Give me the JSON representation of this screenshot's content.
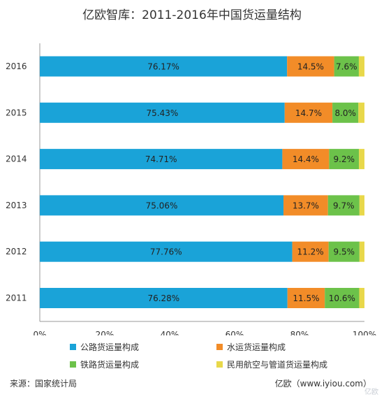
{
  "chart_data": {
    "type": "bar",
    "orientation": "horizontal",
    "stacked": true,
    "title": "亿欧智库：2011-2016年中国货运量结构",
    "categories": [
      "2016",
      "2015",
      "2014",
      "2013",
      "2012",
      "2011"
    ],
    "series": [
      {
        "name": "公路货运量构成",
        "color": "#1aa3d8",
        "values": [
          76.17,
          75.43,
          74.71,
          75.06,
          77.76,
          76.28
        ],
        "labels": [
          "76.17%",
          "75.43%",
          "74.71%",
          "75.06%",
          "77.76%",
          "76.28%"
        ]
      },
      {
        "name": "水运货运量构成",
        "color": "#f28c28",
        "values": [
          14.5,
          14.7,
          14.4,
          13.7,
          11.2,
          11.5
        ],
        "labels": [
          "14.5%",
          "14.7%",
          "14.4%",
          "13.7%",
          "11.2%",
          "11.5%"
        ]
      },
      {
        "name": "铁路货运量构成",
        "color": "#6cc24a",
        "values": [
          7.6,
          8.0,
          9.2,
          9.7,
          9.5,
          10.6
        ],
        "labels": [
          "7.6%",
          "8.0%",
          "9.2%",
          "9.7%",
          "9.5%",
          "10.6%"
        ]
      },
      {
        "name": "民用航空与管道货运量构成",
        "color": "#e8d84a",
        "values": [
          1.73,
          1.87,
          1.69,
          1.54,
          1.54,
          1.62
        ],
        "labels": [
          "",
          "",
          "",
          "",
          "",
          ""
        ]
      }
    ],
    "xlim": [
      0,
      100
    ],
    "xticks": [
      "0%",
      "20%",
      "40%",
      "60%",
      "80%",
      "100%"
    ],
    "grid": false,
    "legend_position": "bottom"
  },
  "source_text": "来源：国家统计局",
  "brand_text": "亿欧（www.iyiou.com）",
  "watermark_text": "亿欧"
}
